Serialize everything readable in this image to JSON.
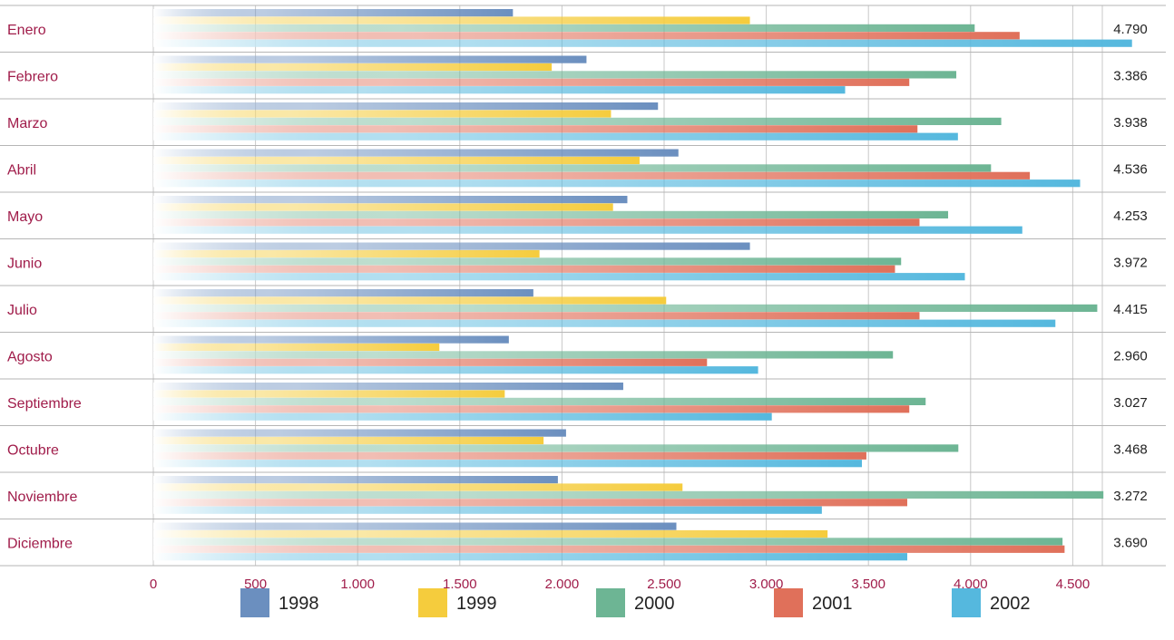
{
  "chart_data": {
    "type": "bar",
    "orientation": "horizontal",
    "categories": [
      "Enero",
      "Febrero",
      "Marzo",
      "Abril",
      "Mayo",
      "Junio",
      "Julio",
      "Agosto",
      "Septiembre",
      "Octubre",
      "Noviembre",
      "Diciembre"
    ],
    "series": [
      {
        "name": "1998",
        "color": "#6b8fbf",
        "values": [
          1760,
          2120,
          2470,
          2570,
          2320,
          2920,
          1860,
          1740,
          2300,
          2020,
          1980,
          2560
        ]
      },
      {
        "name": "1999",
        "color": "#f5cc3d",
        "values": [
          2920,
          1950,
          2240,
          2380,
          2250,
          1890,
          2510,
          1400,
          1720,
          1910,
          2590,
          3300
        ]
      },
      {
        "name": "2000",
        "color": "#6db594",
        "values": [
          4020,
          3930,
          4150,
          4100,
          3890,
          3660,
          4620,
          3620,
          3780,
          3940,
          4650,
          4450
        ]
      },
      {
        "name": "2001",
        "color": "#e0705a",
        "values": [
          4240,
          3700,
          3740,
          4290,
          3750,
          3630,
          3750,
          2710,
          3700,
          3490,
          3690,
          4460
        ]
      },
      {
        "name": "2002",
        "color": "#55b8de",
        "values": [
          4790,
          3386,
          3938,
          4536,
          4253,
          3972,
          4415,
          2960,
          3027,
          3468,
          3272,
          3690
        ]
      }
    ],
    "totals": [
      "4.790",
      "3.386",
      "3.938",
      "4.536",
      "4.253",
      "3.972",
      "4.415",
      "2.960",
      "3.027",
      "3.468",
      "3.272",
      "3.690"
    ],
    "x_ticks": [
      0,
      500,
      1000,
      1500,
      2000,
      2500,
      3000,
      3500,
      4000,
      4500
    ],
    "x_tick_labels": [
      "0",
      "500",
      "1.000",
      "1.500",
      "2.000",
      "2.500",
      "3.000",
      "3.500",
      "4.000",
      "4.500"
    ],
    "xlim": [
      0,
      4800
    ],
    "grid": true,
    "legend_position": "bottom"
  }
}
